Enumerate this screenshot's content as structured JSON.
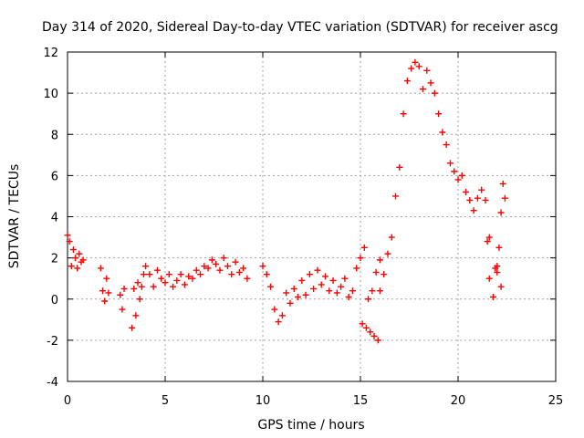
{
  "chart_data": {
    "type": "scatter",
    "title": "Day 314 of 2020, Sidereal Day-to-day VTEC variation (SDTVAR) for receiver ascg",
    "xlabel": "GPS time / hours",
    "ylabel": "SDTVAR / TECUs",
    "xlim": [
      0,
      25
    ],
    "ylim": [
      -4,
      12
    ],
    "xticks": [
      "0",
      "5",
      "10",
      "15",
      "20",
      "25"
    ],
    "yticks": [
      "-4",
      "-2",
      "0",
      "2",
      "4",
      "6",
      "8",
      "10",
      "12"
    ],
    "grid": true,
    "marker": "+",
    "color": "#ff0000",
    "series": [
      {
        "name": "SDTVAR",
        "x": [
          0.0,
          0.1,
          0.2,
          0.3,
          0.4,
          0.5,
          0.6,
          0.7,
          0.8,
          1.7,
          1.8,
          1.9,
          2.0,
          2.1,
          2.7,
          2.8,
          2.9,
          3.3,
          3.4,
          3.5,
          3.6,
          3.7,
          3.8,
          3.9,
          4.0,
          4.2,
          4.4,
          4.6,
          4.8,
          5.0,
          5.2,
          5.4,
          5.6,
          5.8,
          6.0,
          6.2,
          6.4,
          6.6,
          6.8,
          7.0,
          7.2,
          7.4,
          7.6,
          7.8,
          8.0,
          8.2,
          8.4,
          8.6,
          8.8,
          9.0,
          9.2,
          10.0,
          10.2,
          10.4,
          10.6,
          10.8,
          11.0,
          11.2,
          11.4,
          11.6,
          11.8,
          12.0,
          12.2,
          12.4,
          12.6,
          12.8,
          13.0,
          13.2,
          13.4,
          13.6,
          13.8,
          14.0,
          14.2,
          14.4,
          14.6,
          14.8,
          15.0,
          15.2,
          15.4,
          15.6,
          15.8,
          16.0,
          15.1,
          15.3,
          15.5,
          15.7,
          15.9,
          16.0,
          16.2,
          16.4,
          16.6,
          16.8,
          17.0,
          17.2,
          17.4,
          17.6,
          17.8,
          18.0,
          18.2,
          18.4,
          18.6,
          18.8,
          19.0,
          19.2,
          19.4,
          19.6,
          19.8,
          20.0,
          20.2,
          20.4,
          20.6,
          20.8,
          21.0,
          21.2,
          21.4,
          21.5,
          21.6,
          21.8,
          22.0,
          22.1,
          22.2,
          22.3,
          22.4,
          22.0,
          21.6,
          21.9,
          22.2
        ],
        "y": [
          3.1,
          2.8,
          1.6,
          2.4,
          2.0,
          1.5,
          2.2,
          1.8,
          1.9,
          1.5,
          0.4,
          -0.1,
          1.0,
          0.3,
          0.2,
          -0.5,
          0.5,
          -1.4,
          0.5,
          -0.8,
          0.8,
          0.0,
          0.6,
          1.2,
          1.6,
          1.2,
          0.6,
          1.4,
          1.0,
          0.8,
          1.2,
          0.6,
          0.9,
          1.2,
          0.7,
          1.1,
          1.0,
          1.4,
          1.2,
          1.6,
          1.5,
          1.9,
          1.7,
          1.4,
          2.0,
          1.6,
          1.2,
          1.8,
          1.3,
          1.5,
          1.0,
          1.6,
          1.2,
          0.6,
          -0.5,
          -1.1,
          -0.8,
          0.3,
          -0.2,
          0.5,
          0.1,
          0.9,
          0.2,
          1.2,
          0.5,
          1.4,
          0.7,
          1.1,
          0.4,
          0.9,
          0.3,
          0.6,
          1.0,
          0.1,
          0.4,
          1.5,
          2.0,
          2.5,
          0.0,
          0.4,
          1.3,
          1.9,
          -1.2,
          -1.4,
          -1.6,
          -1.8,
          -2.0,
          0.4,
          1.2,
          2.2,
          3.0,
          5.0,
          6.4,
          9.0,
          10.6,
          11.2,
          11.5,
          11.3,
          10.2,
          11.1,
          10.5,
          10.0,
          9.0,
          8.1,
          7.5,
          6.6,
          6.2,
          5.8,
          6.0,
          5.2,
          4.8,
          4.3,
          4.9,
          5.3,
          4.8,
          2.8,
          1.0,
          0.1,
          1.6,
          2.5,
          4.2,
          5.6,
          4.9,
          1.3,
          3.0,
          1.5,
          0.6
        ]
      }
    ]
  }
}
